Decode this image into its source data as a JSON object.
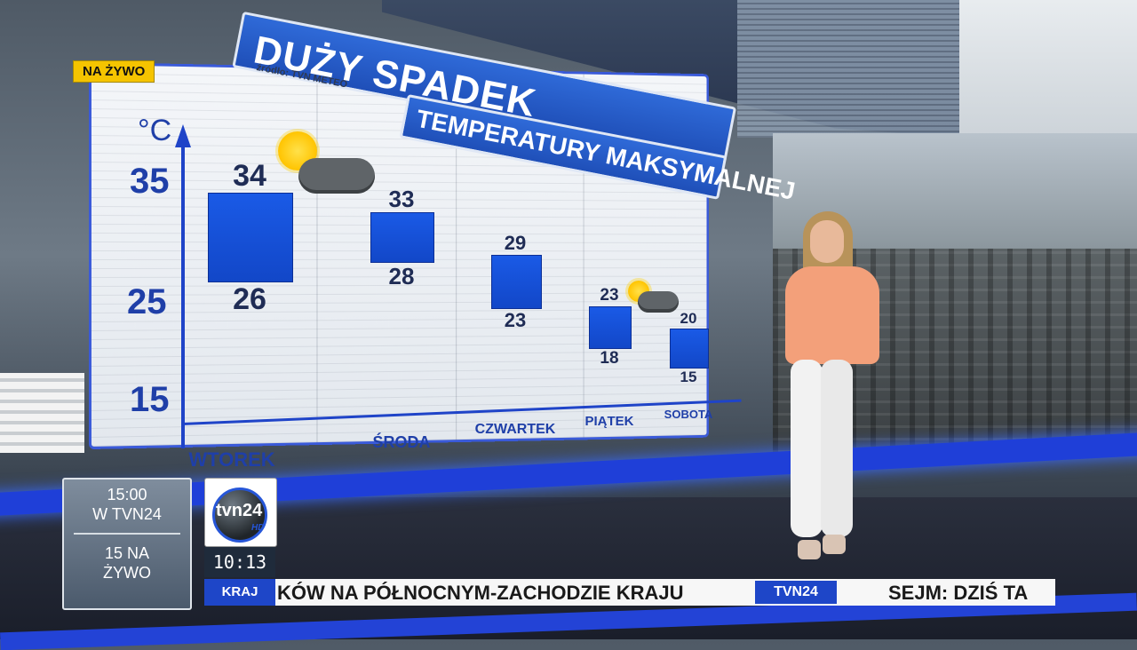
{
  "live_badge": "NA ŻYWO",
  "graphic": {
    "title_line1": "DUŻY SPADEK",
    "title_line2": "TEMPERATURY MAKSYMALNEJ",
    "source": "źródło: TVN METEO",
    "unit": "°C",
    "y_ticks": [
      "35",
      "25",
      "15"
    ]
  },
  "chart_data": {
    "type": "bar",
    "ylim": [
      15,
      35
    ],
    "yticks": [
      35,
      25,
      15
    ],
    "categories": [
      "WTOREK",
      "ŚRODA",
      "CZWARTEK",
      "PIĄTEK",
      "SOBOTA"
    ],
    "series": [
      {
        "values": [
          34,
          33,
          29,
          23,
          20
        ]
      },
      {
        "values": [
          26,
          28,
          23,
          18,
          15
        ]
      }
    ],
    "icons": [
      "sun-behind-cloud-icon",
      "",
      "",
      "sun-behind-cloud-icon",
      ""
    ]
  },
  "promo": {
    "line1": "15:00",
    "line2": "W TVN24",
    "line3": "15 NA",
    "line4": "ŻYWO"
  },
  "channel_logo": {
    "text": "tvn24",
    "hd": "HD"
  },
  "clock": "10:13",
  "ticker": {
    "section": "KRAJ",
    "headline": "KÓW NA PÓŁNOCNYM-ZACHODZIE KRAJU",
    "badge": "TVN24",
    "next_headline": "SEJM: DZIŚ TA"
  },
  "colors": {
    "accent": "#1e46c8",
    "bar_fill": "#1a5ae6",
    "live_yellow": "#f5c400"
  }
}
